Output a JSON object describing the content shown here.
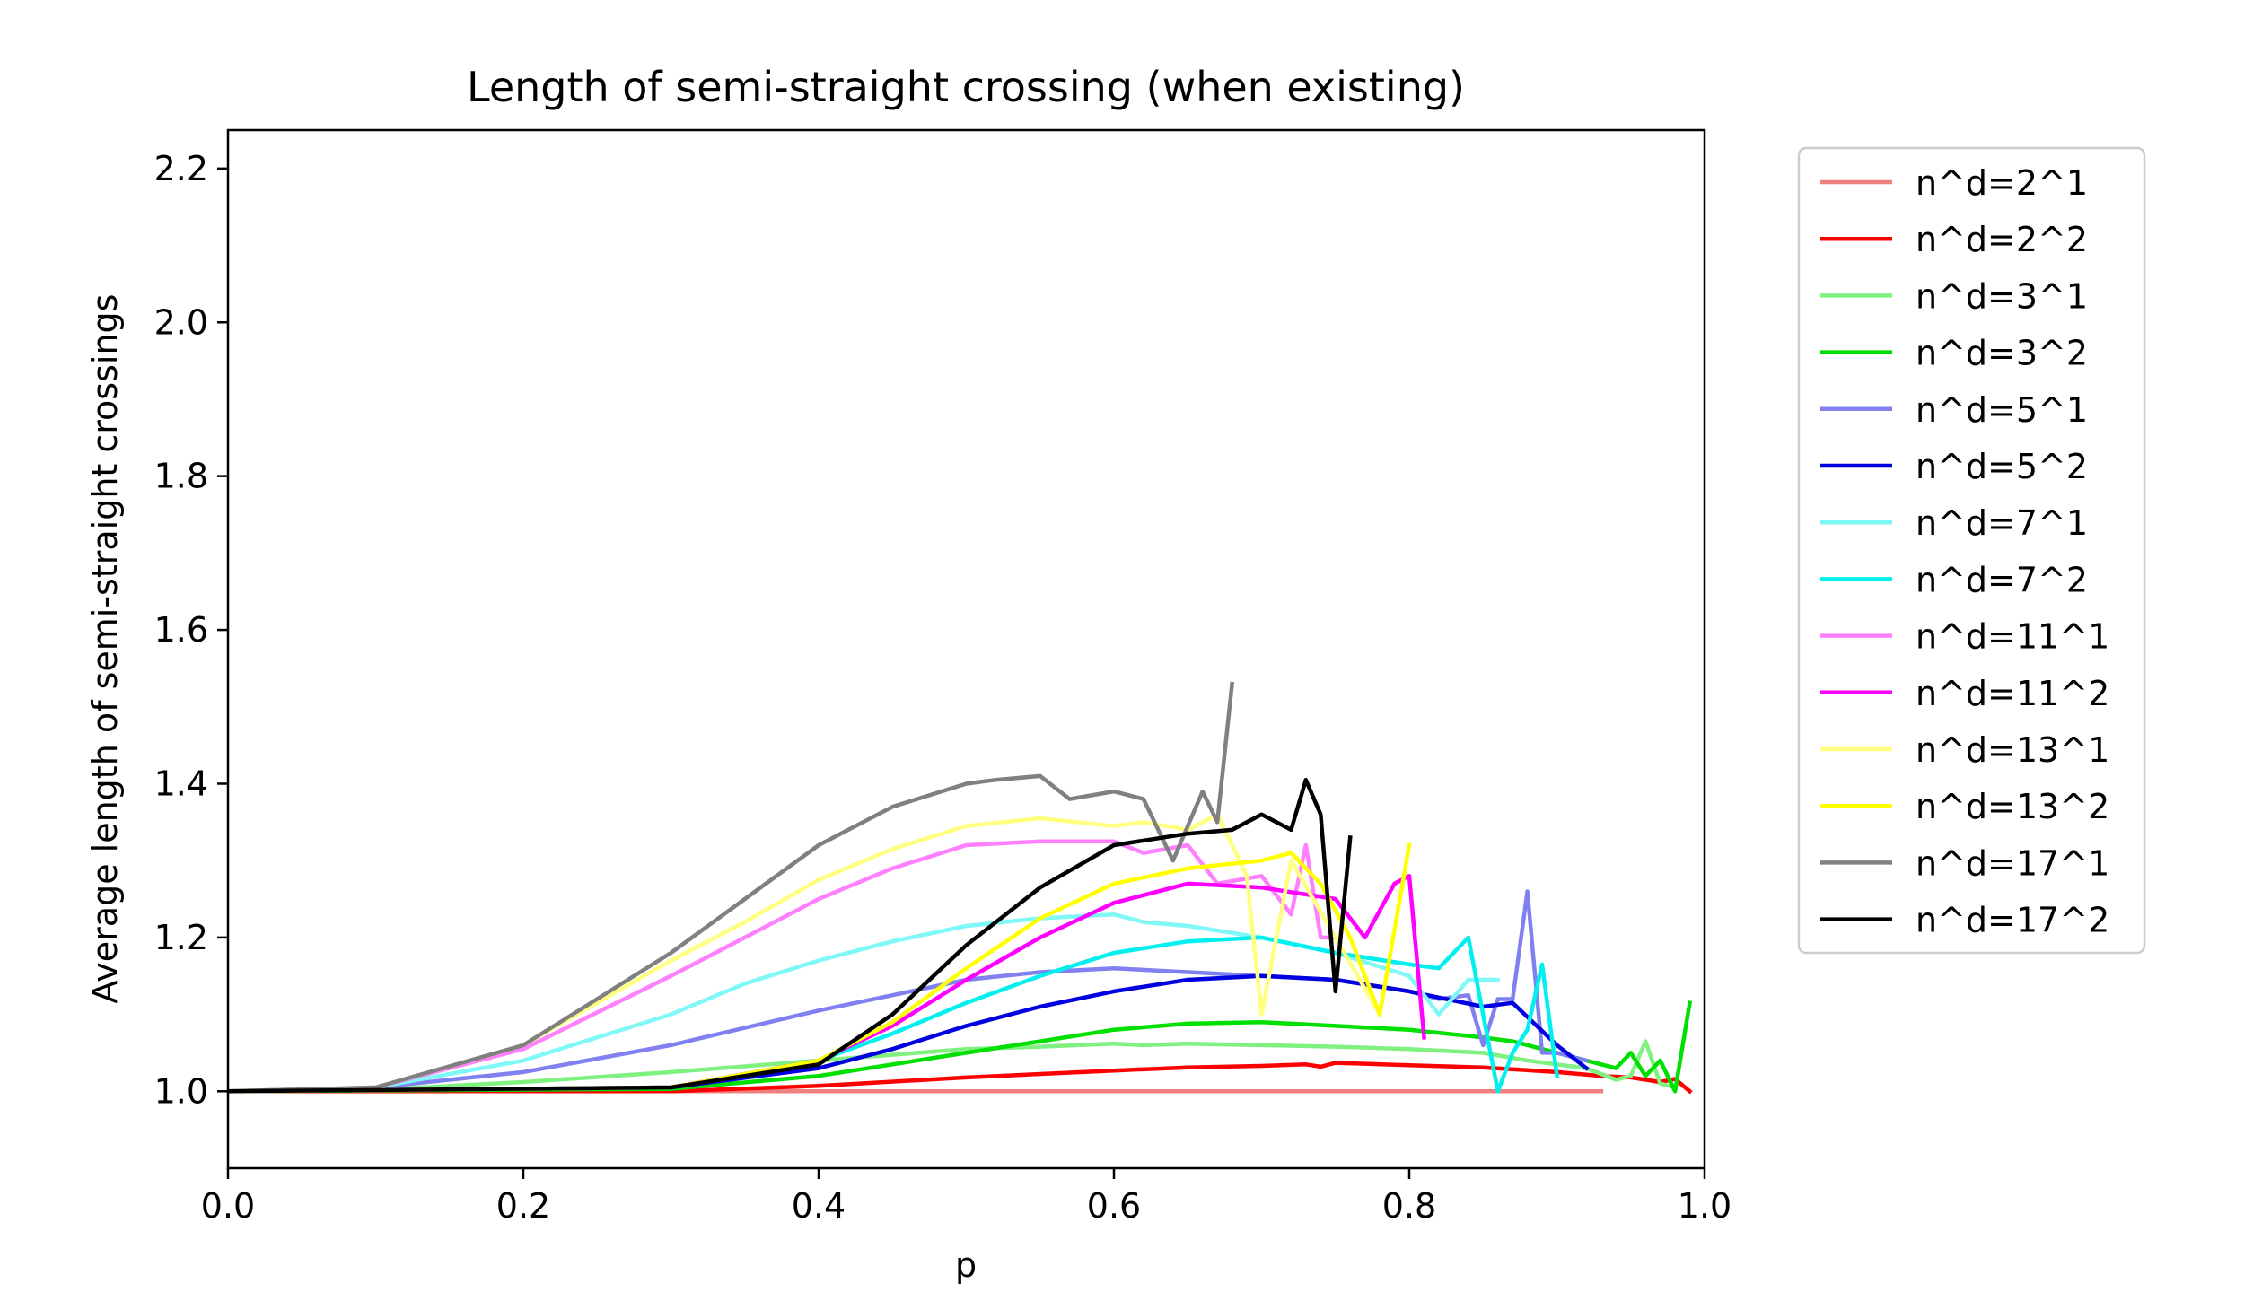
{
  "chart_data": {
    "type": "line",
    "title": "Length of semi-straight crossing (when existing)",
    "xlabel": "p",
    "ylabel": "Average length of semi-straight crossings",
    "xlim": [
      0.0,
      1.0
    ],
    "ylim": [
      0.9,
      2.25
    ],
    "xticks": [
      0.0,
      0.2,
      0.4,
      0.6,
      0.8,
      1.0
    ],
    "xtick_labels": [
      "0.0",
      "0.2",
      "0.4",
      "0.6",
      "0.8",
      "1.0"
    ],
    "yticks": [
      1.0,
      1.2,
      1.4,
      1.6,
      1.8,
      2.0,
      2.2
    ],
    "ytick_labels": [
      "1.0",
      "1.2",
      "1.4",
      "1.6",
      "1.8",
      "2.0",
      "2.2"
    ],
    "grid": false,
    "legend_position": "outside-right",
    "series": [
      {
        "name": "n^d=2^1",
        "color": "#f08080",
        "x": [
          0,
          0.2,
          0.4,
          0.6,
          0.8,
          0.93
        ],
        "y": [
          1.0,
          1.0,
          1.0,
          1.0,
          1.0,
          1.0
        ]
      },
      {
        "name": "n^d=2^2",
        "color": "#ff0000",
        "x": [
          0,
          0.3,
          0.4,
          0.5,
          0.6,
          0.65,
          0.7,
          0.73,
          0.74,
          0.75,
          0.8,
          0.85,
          0.9,
          0.93,
          0.95,
          0.97,
          0.98,
          0.99
        ],
        "y": [
          1.0,
          1.0,
          1.007,
          1.018,
          1.027,
          1.031,
          1.033,
          1.035,
          1.032,
          1.037,
          1.034,
          1.031,
          1.025,
          1.02,
          1.018,
          1.012,
          1.016,
          1.0
        ]
      },
      {
        "name": "n^d=3^1",
        "color": "#80f080",
        "x": [
          0,
          0.1,
          0.2,
          0.3,
          0.4,
          0.5,
          0.55,
          0.6,
          0.62,
          0.65,
          0.7,
          0.75,
          0.8,
          0.85,
          0.88,
          0.9,
          0.92,
          0.94,
          0.95,
          0.96,
          0.97,
          0.98
        ],
        "y": [
          1.0,
          1.002,
          1.012,
          1.025,
          1.04,
          1.055,
          1.058,
          1.062,
          1.06,
          1.062,
          1.06,
          1.058,
          1.055,
          1.05,
          1.04,
          1.035,
          1.03,
          1.015,
          1.02,
          1.065,
          1.01,
          1.005
        ]
      },
      {
        "name": "n^d=3^2",
        "color": "#00e000",
        "x": [
          0,
          0.3,
          0.4,
          0.45,
          0.5,
          0.55,
          0.6,
          0.65,
          0.7,
          0.75,
          0.8,
          0.85,
          0.87,
          0.9,
          0.92,
          0.94,
          0.95,
          0.96,
          0.97,
          0.98,
          0.99
        ],
        "y": [
          1.0,
          1.003,
          1.02,
          1.035,
          1.05,
          1.065,
          1.08,
          1.088,
          1.09,
          1.085,
          1.08,
          1.07,
          1.065,
          1.05,
          1.04,
          1.03,
          1.05,
          1.02,
          1.04,
          1.0,
          1.115
        ]
      },
      {
        "name": "n^d=5^1",
        "color": "#8080f0",
        "x": [
          0,
          0.1,
          0.2,
          0.3,
          0.4,
          0.45,
          0.5,
          0.55,
          0.6,
          0.65,
          0.7,
          0.75,
          0.8,
          0.82,
          0.84,
          0.85,
          0.86,
          0.87,
          0.88,
          0.89,
          0.9,
          0.92
        ],
        "y": [
          1.0,
          1.005,
          1.025,
          1.06,
          1.105,
          1.125,
          1.145,
          1.155,
          1.16,
          1.155,
          1.15,
          1.145,
          1.13,
          1.12,
          1.125,
          1.06,
          1.12,
          1.12,
          1.26,
          1.05,
          1.05,
          1.04
        ]
      },
      {
        "name": "n^d=5^2",
        "color": "#0000e0",
        "x": [
          0,
          0.3,
          0.4,
          0.45,
          0.5,
          0.55,
          0.6,
          0.65,
          0.7,
          0.75,
          0.8,
          0.85,
          0.87,
          0.9,
          0.92
        ],
        "y": [
          1.0,
          1.005,
          1.03,
          1.055,
          1.085,
          1.11,
          1.13,
          1.145,
          1.15,
          1.145,
          1.13,
          1.11,
          1.115,
          1.06,
          1.03
        ]
      },
      {
        "name": "n^d=7^1",
        "color": "#80f8f8",
        "x": [
          0,
          0.1,
          0.2,
          0.3,
          0.35,
          0.4,
          0.45,
          0.5,
          0.55,
          0.6,
          0.62,
          0.65,
          0.7,
          0.75,
          0.8,
          0.82,
          0.84,
          0.86
        ],
        "y": [
          1.0,
          1.005,
          1.04,
          1.1,
          1.14,
          1.17,
          1.195,
          1.215,
          1.225,
          1.23,
          1.22,
          1.215,
          1.2,
          1.18,
          1.15,
          1.1,
          1.145,
          1.145
        ]
      },
      {
        "name": "n^d=7^2",
        "color": "#00f0f0",
        "x": [
          0,
          0.3,
          0.4,
          0.45,
          0.5,
          0.55,
          0.6,
          0.65,
          0.7,
          0.75,
          0.8,
          0.82,
          0.84,
          0.86,
          0.87,
          0.88,
          0.89,
          0.9
        ],
        "y": [
          1.0,
          1.005,
          1.04,
          1.075,
          1.115,
          1.15,
          1.18,
          1.195,
          1.2,
          1.18,
          1.165,
          1.16,
          1.2,
          1.0,
          1.05,
          1.08,
          1.165,
          1.02
        ]
      },
      {
        "name": "n^d=11^1",
        "color": "#ff80ff",
        "x": [
          0,
          0.1,
          0.2,
          0.3,
          0.35,
          0.4,
          0.45,
          0.5,
          0.55,
          0.6,
          0.62,
          0.65,
          0.67,
          0.7,
          0.72,
          0.73,
          0.74,
          0.75
        ],
        "y": [
          1.0,
          1.005,
          1.055,
          1.15,
          1.2,
          1.25,
          1.29,
          1.32,
          1.325,
          1.325,
          1.31,
          1.32,
          1.27,
          1.28,
          1.23,
          1.32,
          1.2,
          1.2
        ]
      },
      {
        "name": "n^d=11^2",
        "color": "#ff00ff",
        "x": [
          0,
          0.3,
          0.4,
          0.45,
          0.5,
          0.55,
          0.6,
          0.65,
          0.7,
          0.75,
          0.77,
          0.79,
          0.8,
          0.81
        ],
        "y": [
          1.0,
          1.005,
          1.04,
          1.085,
          1.145,
          1.2,
          1.245,
          1.27,
          1.265,
          1.25,
          1.2,
          1.27,
          1.28,
          1.07
        ]
      },
      {
        "name": "n^d=13^1",
        "color": "#ffff80",
        "x": [
          0,
          0.1,
          0.2,
          0.3,
          0.35,
          0.4,
          0.45,
          0.5,
          0.55,
          0.6,
          0.62,
          0.65,
          0.67,
          0.69,
          0.7,
          0.72,
          0.75,
          0.78
        ],
        "y": [
          1.0,
          1.005,
          1.06,
          1.17,
          1.22,
          1.275,
          1.315,
          1.345,
          1.355,
          1.345,
          1.35,
          1.34,
          1.36,
          1.28,
          1.1,
          1.3,
          1.2,
          1.1
        ]
      },
      {
        "name": "n^d=13^2",
        "color": "#ffff00",
        "x": [
          0,
          0.3,
          0.4,
          0.45,
          0.5,
          0.55,
          0.6,
          0.65,
          0.7,
          0.72,
          0.74,
          0.76,
          0.78,
          0.8
        ],
        "y": [
          1.0,
          1.005,
          1.04,
          1.09,
          1.16,
          1.225,
          1.27,
          1.29,
          1.3,
          1.31,
          1.27,
          1.2,
          1.1,
          1.32
        ]
      },
      {
        "name": "n^d=17^1",
        "color": "#808080",
        "x": [
          0,
          0.1,
          0.2,
          0.3,
          0.35,
          0.4,
          0.45,
          0.5,
          0.52,
          0.55,
          0.57,
          0.6,
          0.62,
          0.64,
          0.66,
          0.67,
          0.68
        ],
        "y": [
          1.0,
          1.005,
          1.06,
          1.18,
          1.25,
          1.32,
          1.37,
          1.4,
          1.405,
          1.41,
          1.38,
          1.39,
          1.38,
          1.3,
          1.39,
          1.35,
          1.53
        ]
      },
      {
        "name": "n^d=17^2",
        "color": "#000000",
        "x": [
          0,
          0.3,
          0.4,
          0.45,
          0.5,
          0.55,
          0.6,
          0.65,
          0.68,
          0.7,
          0.72,
          0.73,
          0.74,
          0.75,
          0.76
        ],
        "y": [
          1.0,
          1.005,
          1.035,
          1.1,
          1.19,
          1.265,
          1.32,
          1.335,
          1.34,
          1.36,
          1.34,
          1.405,
          1.36,
          1.13,
          1.33
        ]
      }
    ]
  }
}
